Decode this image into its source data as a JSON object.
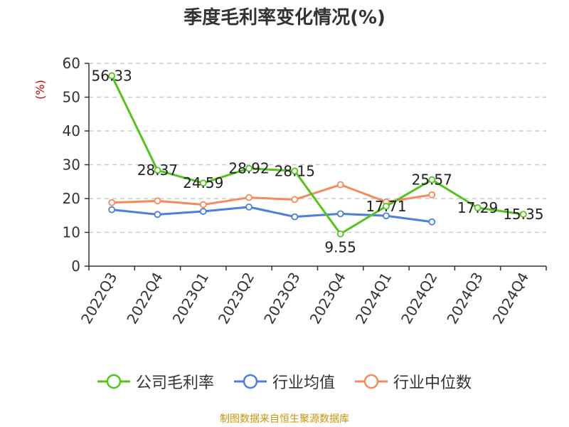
{
  "title": "季度毛利率变化情况(%)",
  "source": "制图数据来自恒生聚源数据库",
  "chart_data": {
    "type": "line",
    "title": "季度毛利率变化情况(%)",
    "ylabel": "(%)",
    "xlabel": "",
    "ylim": [
      0,
      60
    ],
    "yticks": [
      0,
      10,
      20,
      30,
      40,
      50,
      60
    ],
    "grid": true,
    "legend_position": "bottom",
    "categories": [
      "2022Q3",
      "2022Q4",
      "2023Q1",
      "2023Q2",
      "2023Q3",
      "2023Q4",
      "2024Q1",
      "2024Q2",
      "2024Q3",
      "2024Q4"
    ],
    "series": [
      {
        "name": "公司毛利率",
        "color": "#52c41a",
        "values": [
          56.33,
          28.37,
          24.59,
          28.92,
          28.15,
          9.55,
          17.71,
          25.57,
          17.29,
          15.35
        ],
        "labels": [
          "56.33",
          "28.37",
          "24.59",
          "28.92",
          "28.15",
          "9.55",
          "17.71",
          "25.57",
          "17.29",
          "15.35"
        ]
      },
      {
        "name": "行业均值",
        "color": "#4a7fe0",
        "values": [
          16.7,
          15.3,
          16.2,
          17.5,
          14.6,
          15.5,
          14.9,
          13.1,
          null,
          null
        ]
      },
      {
        "name": "行业中位数",
        "color": "#f58a5a",
        "values": [
          18.8,
          19.3,
          18.2,
          20.3,
          19.7,
          24.1,
          19.0,
          21.1,
          null,
          null
        ]
      }
    ]
  }
}
